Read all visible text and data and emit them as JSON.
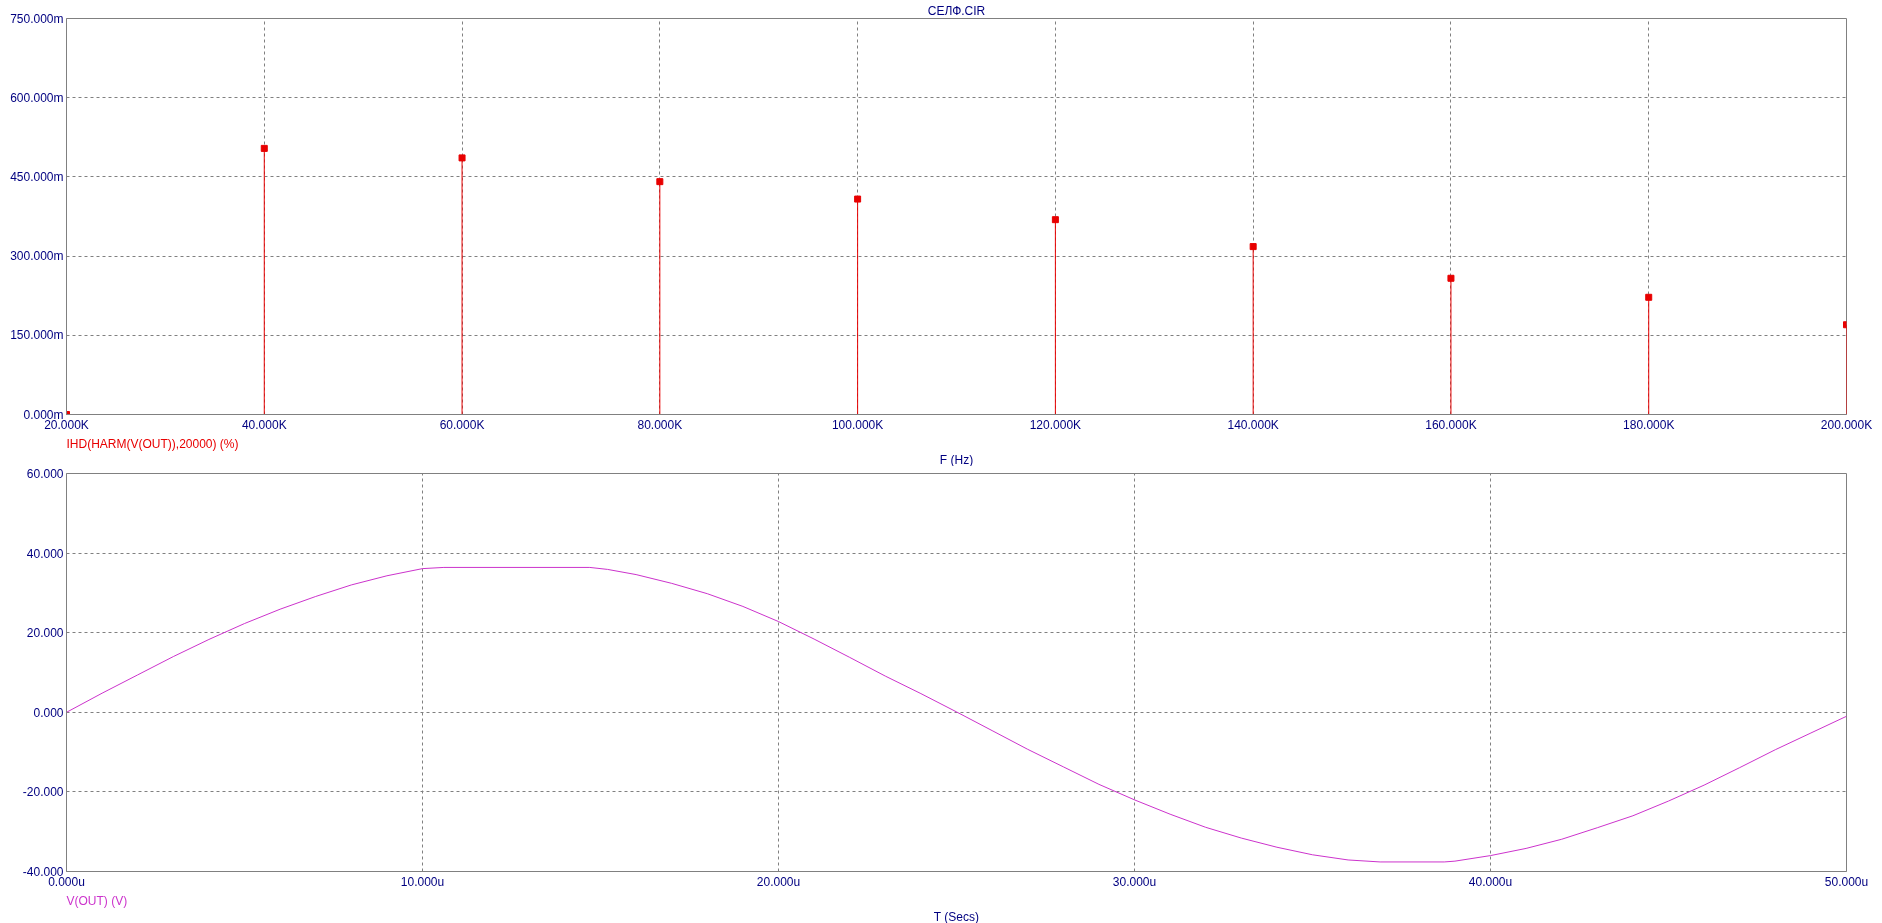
{
  "chart_data": [
    {
      "type": "lollipop",
      "title": "СЕЛФ.CIR",
      "xlabel": "F (Hz)",
      "x": [
        20000,
        40000,
        60000,
        80000,
        100000,
        120000,
        140000,
        160000,
        180000,
        200000
      ],
      "series": [
        {
          "name": "IHD(HARM(V(OUT)),20000) (%)",
          "color": "#e80000",
          "values": [
            0,
            504,
            486,
            441,
            408,
            369,
            318,
            258,
            222,
            170
          ]
        }
      ],
      "xlim": [
        20000,
        200000
      ],
      "xticks": [
        {
          "value": 20000,
          "label": "20.000K"
        },
        {
          "value": 40000,
          "label": "40.000K"
        },
        {
          "value": 60000,
          "label": "60.000K"
        },
        {
          "value": 80000,
          "label": "80.000K"
        },
        {
          "value": 100000,
          "label": "100.000K"
        },
        {
          "value": 120000,
          "label": "120.000K"
        },
        {
          "value": 140000,
          "label": "140.000K"
        },
        {
          "value": 160000,
          "label": "160.000K"
        },
        {
          "value": 180000,
          "label": "180.000K"
        },
        {
          "value": 200000,
          "label": "200.000K"
        }
      ],
      "ylim": [
        0,
        750
      ],
      "yticks": [
        {
          "value": 0,
          "label": "0.000m"
        },
        {
          "value": 150,
          "label": "150.000m"
        },
        {
          "value": 300,
          "label": "300.000m"
        },
        {
          "value": 450,
          "label": "450.000m"
        },
        {
          "value": 600,
          "label": "600.000m"
        },
        {
          "value": 750,
          "label": "750.000m"
        }
      ],
      "grid": true,
      "marker": "square",
      "legend": "bottom left"
    },
    {
      "type": "line",
      "xlabel": "T (Secs)",
      "x": [
        0,
        1,
        2,
        3,
        4,
        5,
        6,
        7,
        8,
        9,
        10,
        10.6,
        14.7,
        15.2,
        16,
        17,
        18,
        19,
        20,
        21,
        22,
        23,
        24,
        25,
        26,
        27,
        28,
        29,
        30,
        31,
        32,
        33,
        34,
        35,
        36,
        36.9,
        38.7,
        39,
        40,
        41,
        42,
        43,
        44,
        45,
        46,
        47,
        48,
        49,
        50
      ],
      "series": [
        {
          "name": "V(OUT) (V)",
          "color": "#cc33cc",
          "values": [
            0,
            4.8,
            9.4,
            14.0,
            18.3,
            22.3,
            25.9,
            29.1,
            32.0,
            34.3,
            36.1,
            36.4,
            36.4,
            35.9,
            34.6,
            32.4,
            29.8,
            26.6,
            22.8,
            18.4,
            13.8,
            9.1,
            4.7,
            0.1,
            -4.6,
            -9.3,
            -13.7,
            -18.1,
            -22.0,
            -25.6,
            -28.9,
            -31.6,
            -33.9,
            -35.8,
            -37.1,
            -37.6,
            -37.6,
            -37.4,
            -36.0,
            -34.2,
            -31.9,
            -29.0,
            -26.0,
            -22.3,
            -18.3,
            -13.9,
            -9.4,
            -5.2,
            -1.0
          ]
        }
      ],
      "xlim": [
        0,
        50
      ],
      "xticks": [
        {
          "value": 0,
          "label": "0.000u"
        },
        {
          "value": 10,
          "label": "10.000u"
        },
        {
          "value": 20,
          "label": "20.000u"
        },
        {
          "value": 30,
          "label": "30.000u"
        },
        {
          "value": 40,
          "label": "40.000u"
        },
        {
          "value": 50,
          "label": "50.000u"
        }
      ],
      "ylim": [
        -40,
        60
      ],
      "yticks": [
        {
          "value": -40,
          "label": "-40.000"
        },
        {
          "value": -20,
          "label": "-20.000"
        },
        {
          "value": 0,
          "label": "0.000"
        },
        {
          "value": 20,
          "label": "20.000"
        },
        {
          "value": 40,
          "label": "40.000"
        },
        {
          "value": 60,
          "label": "60.000"
        }
      ],
      "grid": true,
      "legend": "bottom left"
    }
  ]
}
